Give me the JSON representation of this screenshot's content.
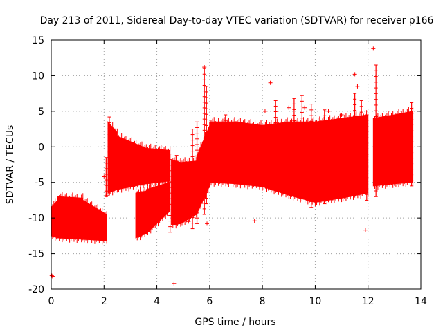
{
  "chart_data": {
    "type": "scatter",
    "title": "Day 213 of 2011, Sidereal Day-to-day VTEC variation (SDTVAR) for receiver p166",
    "xlabel": "GPS time / hours",
    "ylabel": "SDTVAR / TECUs",
    "xlim": [
      0,
      14
    ],
    "ylim": [
      -20,
      15
    ],
    "xticks": [
      0,
      2,
      4,
      6,
      8,
      10,
      12,
      14
    ],
    "yticks": [
      -20,
      -15,
      -10,
      -5,
      0,
      5,
      10,
      15
    ],
    "xtick_labels": [
      "0",
      "2",
      "4",
      "6",
      "8",
      "10",
      "12",
      "14"
    ],
    "ytick_labels": [
      "-20",
      "-15",
      "-10",
      "-5",
      "0",
      "5",
      "10",
      "15"
    ],
    "grid": true,
    "series_color": "#ff0000",
    "envelope": [
      {
        "x0": 0.0,
        "x1": 0.25,
        "lo0": -12.5,
        "lo1": -12.8,
        "hi0": -8.5,
        "hi1": -7.5
      },
      {
        "x0": 0.25,
        "x1": 1.2,
        "lo0": -12.8,
        "lo1": -13.0,
        "hi0": -7.0,
        "hi1": -7.2
      },
      {
        "x0": 1.2,
        "x1": 2.1,
        "lo0": -13.0,
        "lo1": -13.2,
        "hi0": -7.5,
        "hi1": -9.5
      },
      {
        "x0": 2.15,
        "x1": 2.5,
        "lo0": -6.5,
        "lo1": -6.0,
        "hi0": 3.5,
        "hi1": 2.0
      },
      {
        "x0": 2.5,
        "x1": 3.6,
        "lo0": -6.0,
        "lo1": -5.2,
        "hi0": 1.5,
        "hi1": -0.2
      },
      {
        "x0": 3.6,
        "x1": 4.5,
        "lo0": -5.2,
        "lo1": -4.8,
        "hi0": -0.2,
        "hi1": -0.5
      },
      {
        "x0": 3.2,
        "x1": 3.6,
        "lo0": -12.8,
        "lo1": -12.2,
        "hi0": -6.5,
        "hi1": -6.2
      },
      {
        "x0": 3.6,
        "x1": 4.5,
        "lo0": -12.2,
        "lo1": -9.0,
        "hi0": -6.0,
        "hi1": -5.0
      },
      {
        "x0": 4.55,
        "x1": 4.9,
        "lo0": -11.0,
        "lo1": -10.8,
        "hi0": -1.8,
        "hi1": -2.2
      },
      {
        "x0": 4.9,
        "x1": 5.5,
        "lo0": -10.8,
        "lo1": -9.5,
        "hi0": -2.2,
        "hi1": -2.0
      },
      {
        "x0": 5.5,
        "x1": 6.0,
        "lo0": -9.5,
        "lo1": -5.5,
        "hi0": -1.5,
        "hi1": 3.0
      },
      {
        "x0": 6.0,
        "x1": 7.0,
        "lo0": -5.0,
        "lo1": -5.2,
        "hi0": 3.5,
        "hi1": 3.5
      },
      {
        "x0": 7.0,
        "x1": 8.0,
        "lo0": -5.2,
        "lo1": -5.6,
        "hi0": 3.5,
        "hi1": 3.0
      },
      {
        "x0": 8.0,
        "x1": 9.0,
        "lo0": -5.6,
        "lo1": -6.8,
        "hi0": 3.0,
        "hi1": 3.5
      },
      {
        "x0": 9.0,
        "x1": 10.0,
        "lo0": -6.8,
        "lo1": -7.8,
        "hi0": 3.5,
        "hi1": 3.5
      },
      {
        "x0": 10.0,
        "x1": 11.0,
        "lo0": -7.8,
        "lo1": -7.2,
        "hi0": 3.5,
        "hi1": 4.0
      },
      {
        "x0": 11.0,
        "x1": 12.0,
        "lo0": -7.2,
        "lo1": -6.5,
        "hi0": 4.0,
        "hi1": 4.5
      },
      {
        "x0": 12.2,
        "x1": 13.0,
        "lo0": -5.5,
        "lo1": -5.2,
        "hi0": 4.0,
        "hi1": 4.5
      },
      {
        "x0": 13.0,
        "x1": 13.7,
        "lo0": -5.2,
        "lo1": -5.0,
        "hi0": 4.5,
        "hi1": 5.0
      }
    ],
    "outliers": [
      [
        0.02,
        -18.1
      ],
      [
        0.05,
        -18.2
      ],
      [
        4.65,
        -19.2
      ],
      [
        7.7,
        -10.4
      ],
      [
        8.3,
        9.0
      ],
      [
        11.9,
        -11.7
      ],
      [
        11.5,
        10.2
      ],
      [
        8.1,
        5.0
      ],
      [
        9.6,
        5.5
      ],
      [
        10.5,
        5.0
      ],
      [
        2.0,
        -4.2
      ],
      [
        5.8,
        11.2
      ],
      [
        12.2,
        13.8
      ],
      [
        5.2,
        -10.5
      ],
      [
        5.9,
        -10.8
      ],
      [
        2.1,
        -6.8
      ],
      [
        3.0,
        -5.5
      ],
      [
        11.6,
        8.5
      ],
      [
        11.0,
        4.5
      ],
      [
        9.0,
        5.5
      ]
    ],
    "spikes": [
      {
        "x": 2.08,
        "lo": -7.0,
        "hi": -1.5
      },
      {
        "x": 2.2,
        "lo": -6.5,
        "hi": 4.2
      },
      {
        "x": 4.5,
        "lo": -12.0,
        "hi": -1.0
      },
      {
        "x": 4.75,
        "lo": -11.0,
        "hi": -1.2
      },
      {
        "x": 5.35,
        "lo": -11.5,
        "hi": 2.5
      },
      {
        "x": 5.52,
        "lo": -10.8,
        "hi": 3.5
      },
      {
        "x": 5.8,
        "lo": -9.5,
        "hi": 11.0
      },
      {
        "x": 5.88,
        "lo": -8.0,
        "hi": 8.5
      },
      {
        "x": 6.6,
        "lo": -5.0,
        "hi": 4.5
      },
      {
        "x": 8.5,
        "lo": -6.0,
        "hi": 6.5
      },
      {
        "x": 9.2,
        "lo": -6.5,
        "hi": 6.8
      },
      {
        "x": 9.5,
        "lo": -7.0,
        "hi": 7.2
      },
      {
        "x": 9.85,
        "lo": -8.5,
        "hi": 6.0
      },
      {
        "x": 10.35,
        "lo": -8.0,
        "hi": 5.2
      },
      {
        "x": 11.5,
        "lo": -6.8,
        "hi": 7.5
      },
      {
        "x": 11.75,
        "lo": -6.5,
        "hi": 6.5
      },
      {
        "x": 11.95,
        "lo": -7.5,
        "hi": 4.5
      },
      {
        "x": 12.3,
        "lo": -7.0,
        "hi": 11.5
      },
      {
        "x": 13.65,
        "lo": -5.5,
        "hi": 6.2
      }
    ]
  }
}
